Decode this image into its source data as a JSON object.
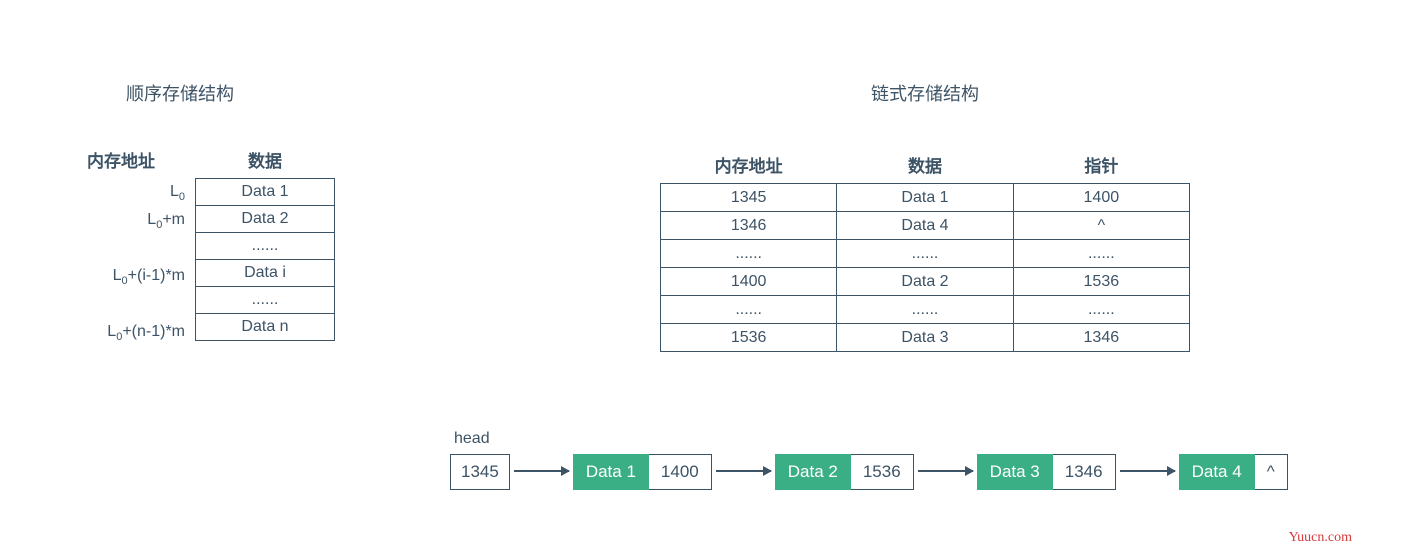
{
  "left": {
    "title": "顺序存储结构",
    "addr_header": "内存地址",
    "data_header": "数据",
    "rows": [
      {
        "addr": "L<sub>0</sub>",
        "data": "Data 1"
      },
      {
        "addr": "L<sub>0</sub>+m",
        "data": "Data 2"
      },
      {
        "addr": "",
        "data": "......"
      },
      {
        "addr": "L<sub>0</sub>+(i-1)*m",
        "data": "Data i"
      },
      {
        "addr": "",
        "data": "......"
      },
      {
        "addr": "L<sub>0</sub>+(n-1)*m",
        "data": "Data n"
      }
    ]
  },
  "right": {
    "title": "链式存储结构",
    "headers": [
      "内存地址",
      "数据",
      "指针"
    ],
    "rows": [
      [
        "1345",
        "Data 1",
        "1400"
      ],
      [
        "1346",
        "Data 4",
        "^"
      ],
      [
        "......",
        "......",
        "......"
      ],
      [
        "1400",
        "Data 2",
        "1536"
      ],
      [
        "......",
        "......",
        "......"
      ],
      [
        "1536",
        "Data 3",
        "1346"
      ]
    ]
  },
  "linked": {
    "head_label": "head",
    "head_value": "1345",
    "nodes": [
      {
        "data": "Data 1",
        "ptr": "1400"
      },
      {
        "data": "Data 2",
        "ptr": "1536"
      },
      {
        "data": "Data 3",
        "ptr": "1346"
      },
      {
        "data": "Data 4",
        "ptr": "^"
      }
    ]
  },
  "colors": {
    "text": "#3d5366",
    "border": "#3d5366",
    "node_fill": "#3aaf85",
    "node_text": "#ffffff",
    "background": "#ffffff",
    "watermark": "#d43c3c"
  },
  "watermark": "Yuucn.com"
}
